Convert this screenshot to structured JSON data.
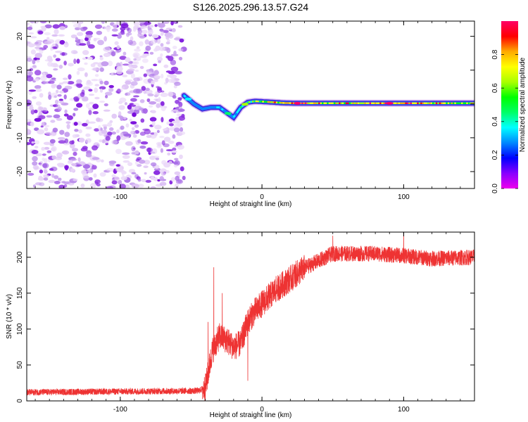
{
  "title": "S126.2025.296.13.57.G24",
  "chart_data": [
    {
      "type": "heatmap",
      "name": "spectrogram",
      "xlabel": "Height of straight line (km)",
      "ylabel": "Frequency (Hz)",
      "xlim": [
        -166,
        150
      ],
      "ylim": [
        -25,
        24.5
      ],
      "xticks": [
        -100,
        0,
        100
      ],
      "yticks": [
        -20,
        -10,
        0,
        10,
        20
      ],
      "colorbar": {
        "label": "Normalized spectral amplitude",
        "range": [
          0.0,
          1.0
        ],
        "ticks": [
          0.0,
          0.2,
          0.4,
          0.6,
          0.8
        ],
        "tick_labels": [
          "0.0",
          "0.2",
          "0.4",
          "0.6",
          "0.8"
        ],
        "colors": [
          "#ee00ee",
          "#8800ff",
          "#0000ff",
          "#0088ff",
          "#00ffff",
          "#00ff66",
          "#00ff00",
          "#aaff00",
          "#ffff00",
          "#ffaa00",
          "#ff0000",
          "#ff0066"
        ]
      },
      "noise_region": {
        "x_from": -166,
        "x_to": -55,
        "amplitude_range": [
          0.0,
          0.1
        ]
      },
      "frequency_trace": [
        {
          "x": -55,
          "f": 2.5,
          "amp": 0.2
        },
        {
          "x": -48,
          "f": 0.0,
          "amp": 0.15
        },
        {
          "x": -42,
          "f": -1.5,
          "amp": 0.25
        },
        {
          "x": -36,
          "f": -1.0,
          "amp": 0.2
        },
        {
          "x": -30,
          "f": -1.0,
          "amp": 0.3
        },
        {
          "x": -25,
          "f": -2.5,
          "amp": 0.25
        },
        {
          "x": -20,
          "f": -4.0,
          "amp": 0.3
        },
        {
          "x": -15,
          "f": -1.0,
          "amp": 0.45
        },
        {
          "x": -10,
          "f": 0.5,
          "amp": 0.5
        },
        {
          "x": -5,
          "f": 0.8,
          "amp": 0.6
        },
        {
          "x": 0,
          "f": 0.7,
          "amp": 0.7
        },
        {
          "x": 8,
          "f": 0.5,
          "amp": 0.7
        },
        {
          "x": 15,
          "f": 0.3,
          "amp": 0.75
        },
        {
          "x": 25,
          "f": 0.2,
          "amp": 0.9
        },
        {
          "x": 35,
          "f": 0.2,
          "amp": 0.8
        },
        {
          "x": 50,
          "f": 0.2,
          "amp": 0.7
        },
        {
          "x": 70,
          "f": 0.2,
          "amp": 0.75
        },
        {
          "x": 90,
          "f": 0.2,
          "amp": 0.9
        },
        {
          "x": 110,
          "f": 0.2,
          "amp": 0.8
        },
        {
          "x": 130,
          "f": 0.2,
          "amp": 0.7
        },
        {
          "x": 150,
          "f": 0.2,
          "amp": 0.7
        }
      ]
    },
    {
      "type": "line",
      "name": "snr",
      "color": "#ee3333",
      "xlabel": "Height of straight line (km)",
      "ylabel": "SNR (10 * v/v)",
      "xlim": [
        -166,
        150
      ],
      "ylim": [
        0,
        235
      ],
      "xticks": [
        -100,
        0,
        100
      ],
      "yticks": [
        0,
        50,
        100,
        150,
        200
      ],
      "trend": {
        "x": [
          -166,
          -45,
          -40,
          -35,
          -30,
          -25,
          -20,
          -15,
          -10,
          -5,
          0,
          10,
          20,
          30,
          40,
          50,
          60,
          80,
          100,
          120,
          150
        ],
        "y": [
          12,
          14,
          18,
          70,
          90,
          85,
          75,
          80,
          110,
          125,
          135,
          155,
          170,
          185,
          195,
          205,
          205,
          205,
          202,
          198,
          200
        ]
      },
      "spikes": [
        {
          "x": -34,
          "y": 186
        },
        {
          "x": -38,
          "y": 110
        },
        {
          "x": -28,
          "y": 150
        },
        {
          "x": -10,
          "y": 28
        },
        {
          "x": 50,
          "y": 230
        },
        {
          "x": 100,
          "y": 235
        }
      ]
    }
  ]
}
